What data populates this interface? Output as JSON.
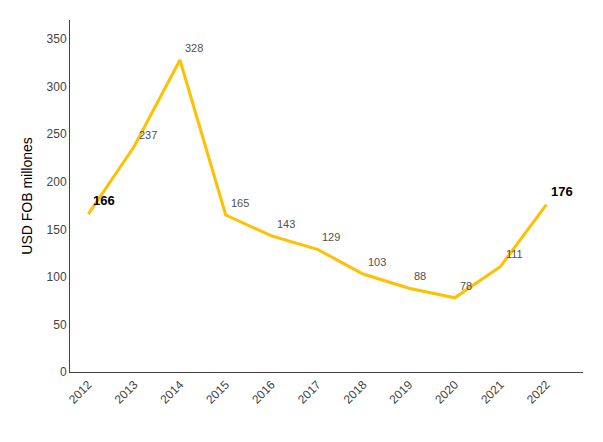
{
  "chart_data": {
    "type": "line",
    "x": [
      2012,
      2013,
      2014,
      2015,
      2016,
      2017,
      2018,
      2019,
      2020,
      2021,
      2022
    ],
    "values": [
      166,
      237,
      328,
      165,
      143,
      129,
      103,
      88,
      78,
      111,
      176
    ],
    "color": "#FFC000",
    "ylabel": "USD FOB millones",
    "xlim": [
      2011.6,
      2022.8
    ],
    "xticks": [
      2012,
      2013,
      2014,
      2015,
      2016,
      2017,
      2018,
      2019,
      2020,
      2021,
      2022
    ],
    "ylim": [
      0,
      370
    ],
    "yticks": [
      0,
      50,
      100,
      150,
      200,
      250,
      300,
      350
    ],
    "grid": false,
    "data_labels": true
  }
}
